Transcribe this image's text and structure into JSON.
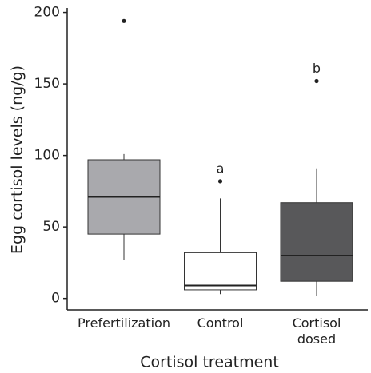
{
  "chart_data": {
    "type": "box",
    "x_label": "Cortisol treatment",
    "y_label": "Egg cortisol levels (ng/g)",
    "ylim": [
      -8,
      202
    ],
    "yticks": [
      0,
      50,
      100,
      150,
      200
    ],
    "boxes": [
      {
        "category": "Prefertilization",
        "color": "#a9a9ad",
        "low": 27,
        "q1": 45,
        "median": 71,
        "q3": 97,
        "high": 101,
        "outliers": [
          194
        ]
      },
      {
        "category": "Control",
        "color": "#ffffff",
        "low": 3,
        "q1": 6,
        "median": 9,
        "q3": 32,
        "high": 70,
        "outliers": [
          82
        ],
        "label": "a"
      },
      {
        "category": "Cortisol dosed",
        "color": "#58585a",
        "low": 2,
        "q1": 12,
        "median": 30,
        "q3": 67,
        "high": 91,
        "outliers": [
          152
        ],
        "label": "b"
      }
    ]
  }
}
